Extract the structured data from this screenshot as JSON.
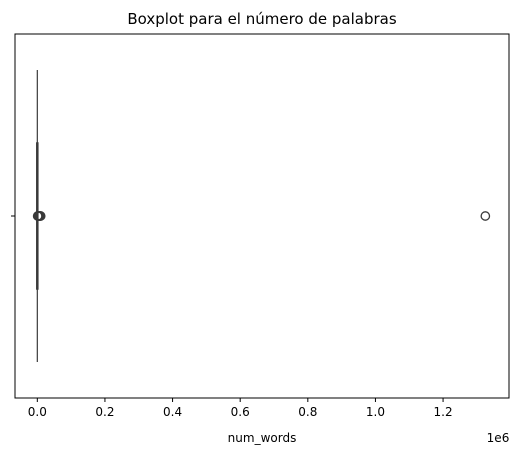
{
  "chart_data": {
    "type": "boxplot",
    "title": "Boxplot para el número de palabras",
    "xlabel": "num_words",
    "ylabel": "",
    "offset_text": "1e6",
    "x_scale_factor": 1000000,
    "xlim": [
      -66000,
      1395000
    ],
    "xticks": [
      0,
      200000,
      400000,
      600000,
      800000,
      1000000,
      1200000
    ],
    "xtick_labels": [
      "0.0",
      "0.2",
      "0.4",
      "0.6",
      "0.8",
      "1.0",
      "1.2"
    ],
    "grid": false,
    "legend": "none",
    "box": {
      "whisker_low": 0,
      "q1": 0,
      "median": 0,
      "q3": 0,
      "whisker_high": 0
    },
    "outliers": [
      1000,
      2000,
      3000,
      4000,
      5000,
      6000,
      7000,
      8000,
      9000,
      10000,
      1325000
    ],
    "colors": {
      "box": "#3a3a3a",
      "outlier": "#3a3a3a",
      "axis": "#000000"
    }
  }
}
